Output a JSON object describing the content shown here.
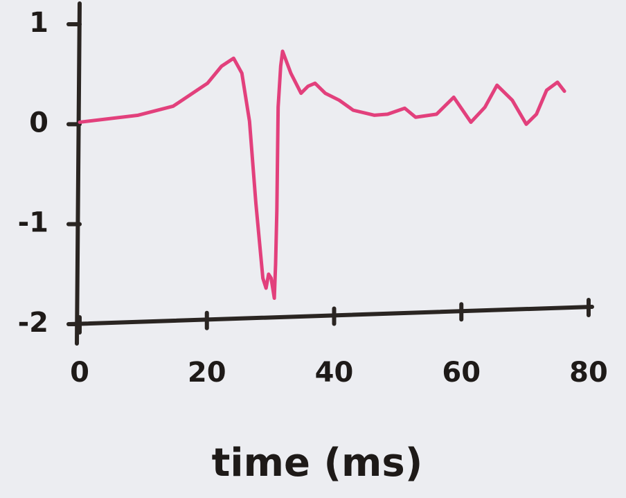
{
  "chart_data": {
    "type": "line",
    "x_label": "time (ms)",
    "x": [
      0,
      9.2,
      14.7,
      20.1,
      22.3,
      24.2,
      25.5,
      26.7,
      27.7,
      28.8,
      29.3,
      29.7,
      30.1,
      30.6,
      30.8,
      31.0,
      31.2,
      31.6,
      31.9,
      33.2,
      34.8,
      35.9,
      37.0,
      38.6,
      40.8,
      43.0,
      46.3,
      48.4,
      51.1,
      52.8,
      56.1,
      58.8,
      61.5,
      63.7,
      65.6,
      68.0,
      70.2,
      71.8,
      73.4,
      75.1,
      76.2
    ],
    "values": [
      0.02,
      0.09,
      0.18,
      0.41,
      0.58,
      0.66,
      0.51,
      0.03,
      -0.79,
      -1.54,
      -1.64,
      -1.5,
      -1.54,
      -1.74,
      -1.4,
      -0.86,
      0.17,
      0.58,
      0.73,
      0.51,
      0.31,
      0.38,
      0.41,
      0.31,
      0.24,
      0.14,
      0.09,
      0.1,
      0.16,
      0.07,
      0.1,
      0.27,
      0.02,
      0.17,
      0.39,
      0.24,
      0.0,
      0.1,
      0.34,
      0.42,
      0.33
    ],
    "color": "#e2407c",
    "xlim": [
      0,
      80
    ],
    "xticks": [
      0,
      20,
      40,
      60,
      80
    ],
    "ylim": [
      -2,
      1
    ],
    "yticks": [
      -2,
      -1,
      0,
      1
    ]
  }
}
